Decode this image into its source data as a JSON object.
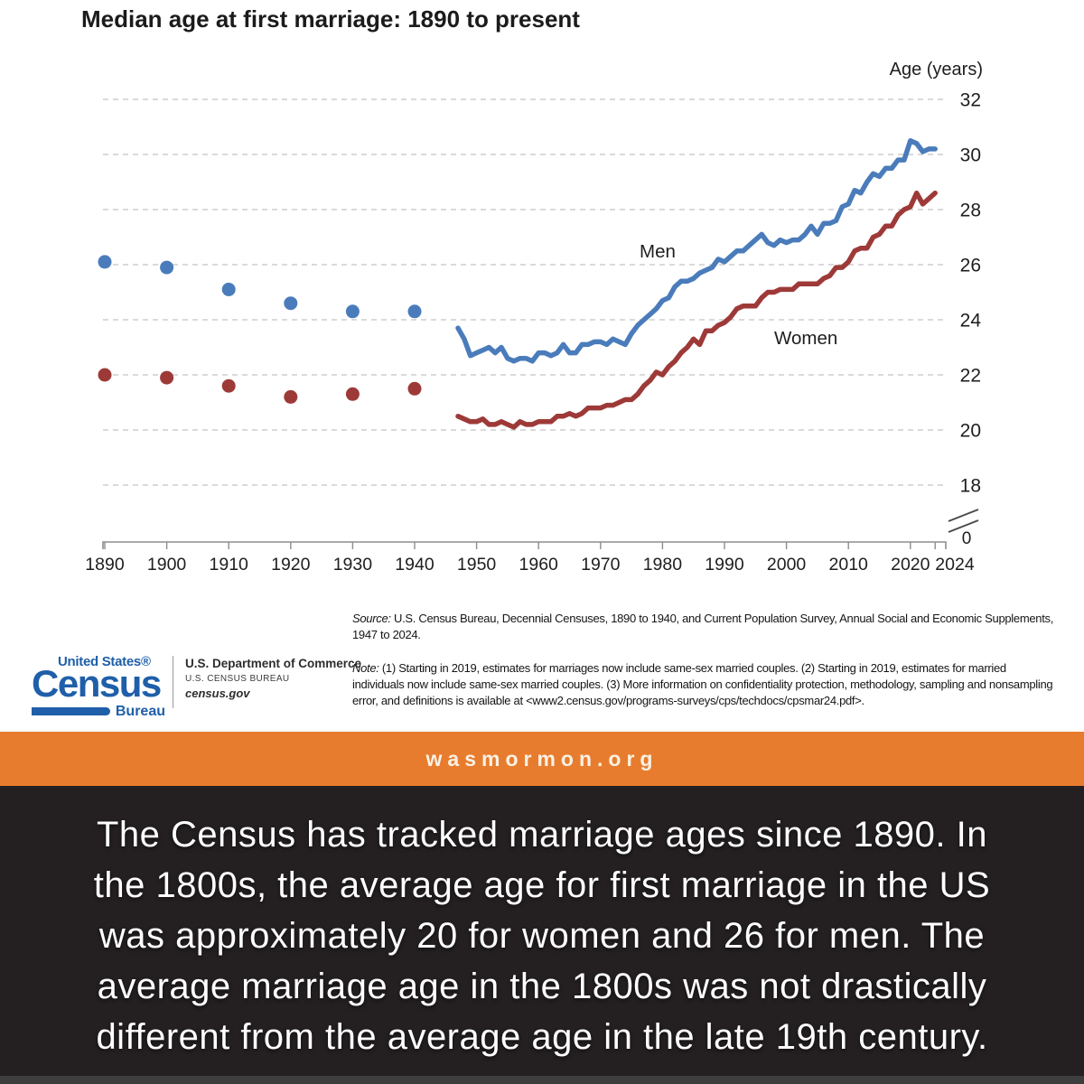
{
  "chart_data": {
    "type": "line",
    "title": "Median age at first marriage: 1890 to present",
    "ylabel": "Age (years)",
    "xlabel": "",
    "ylim": [
      0,
      33
    ],
    "grid": "dashed-horizontal",
    "axis_break_label": "0",
    "y_ticks": [
      32,
      30,
      28,
      26,
      24,
      22,
      20,
      18
    ],
    "x_ticks": [
      1890,
      1900,
      1910,
      1920,
      1930,
      1940,
      1950,
      1960,
      1970,
      1980,
      1990,
      2000,
      2010,
      2020,
      2024
    ],
    "decennial_years": [
      1890,
      1900,
      1910,
      1920,
      1930,
      1940
    ],
    "annual_start_year": 1947,
    "annual_end_year": 2024,
    "series": [
      {
        "name": "Men",
        "color": "#4A7CBB",
        "decennial": [
          26.1,
          25.9,
          25.1,
          24.6,
          24.3,
          24.3
        ],
        "annual": [
          23.7,
          23.3,
          22.7,
          22.8,
          22.9,
          23.0,
          22.8,
          23.0,
          22.6,
          22.5,
          22.6,
          22.6,
          22.5,
          22.8,
          22.8,
          22.7,
          22.8,
          23.1,
          22.8,
          22.8,
          23.1,
          23.1,
          23.2,
          23.2,
          23.1,
          23.3,
          23.2,
          23.1,
          23.5,
          23.8,
          24.0,
          24.2,
          24.4,
          24.7,
          24.8,
          25.2,
          25.4,
          25.4,
          25.5,
          25.7,
          25.8,
          25.9,
          26.2,
          26.1,
          26.3,
          26.5,
          26.5,
          26.7,
          26.9,
          27.1,
          26.8,
          26.7,
          26.9,
          26.8,
          26.9,
          26.9,
          27.1,
          27.4,
          27.1,
          27.5,
          27.5,
          27.6,
          28.1,
          28.2,
          28.7,
          28.6,
          29.0,
          29.3,
          29.2,
          29.5,
          29.5,
          29.8,
          29.8,
          30.5,
          30.4,
          30.1,
          30.2,
          30.2
        ]
      },
      {
        "name": "Women",
        "color": "#9D3A38",
        "decennial": [
          22.0,
          21.9,
          21.6,
          21.2,
          21.3,
          21.5
        ],
        "annual": [
          20.5,
          20.4,
          20.3,
          20.3,
          20.4,
          20.2,
          20.2,
          20.3,
          20.2,
          20.1,
          20.3,
          20.2,
          20.2,
          20.3,
          20.3,
          20.3,
          20.5,
          20.5,
          20.6,
          20.5,
          20.6,
          20.8,
          20.8,
          20.8,
          20.9,
          20.9,
          21.0,
          21.1,
          21.1,
          21.3,
          21.6,
          21.8,
          22.1,
          22.0,
          22.3,
          22.5,
          22.8,
          23.0,
          23.3,
          23.1,
          23.6,
          23.6,
          23.8,
          23.9,
          24.1,
          24.4,
          24.5,
          24.5,
          24.5,
          24.8,
          25.0,
          25.0,
          25.1,
          25.1,
          25.1,
          25.3,
          25.3,
          25.3,
          25.3,
          25.5,
          25.6,
          25.9,
          25.9,
          26.1,
          26.5,
          26.6,
          26.6,
          27.0,
          27.1,
          27.4,
          27.4,
          27.8,
          28.0,
          28.1,
          28.6,
          28.2,
          28.4,
          28.6
        ]
      }
    ],
    "style": {
      "grid_color": "#c3c3c3",
      "axis_color": "#8d8d8d",
      "tick_label_color": "#1e1e1e"
    }
  },
  "footer": {
    "source_label": "Source:",
    "source_text": "U.S. Census Bureau, Decennial Censuses, 1890 to 1940, and Current Population Survey, Annual Social and Economic Supplements, 1947 to 2024.",
    "note_label": "Note:",
    "note_text": "(1) Starting in 2019, estimates for marriages now include same-sex married couples. (2) Starting in 2019, estimates for married individuals now include same-sex married couples. (3) More information on confidentiality protection, methodology, sampling and nonsampling error, and definitions is available at <www2.census.gov/programs-surveys/cps/techdocs/cpsmar24.pdf>."
  },
  "logo": {
    "united_states": "United States®",
    "census": "Census",
    "bureau": "Bureau",
    "department": "U.S. Department of Commerce",
    "bureau_caps": "U.S. CENSUS BUREAU",
    "site": "census.gov",
    "blue": "#1f5fa9"
  },
  "banner": {
    "text": "wasmormon.org",
    "bg": "#e87c2e"
  },
  "caption": {
    "lines": [
      "The Census has tracked marriage ages since 1890. In",
      "the 1800s, the average age for first marriage in the US",
      "was approximately 20 for women and 26 for men. The",
      "average marriage age in the 1800s was not drastically",
      "different from the average age in the late 19th century."
    ],
    "bg": "#242021"
  }
}
